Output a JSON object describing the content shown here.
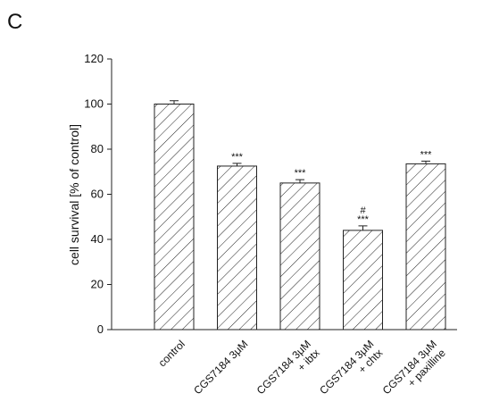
{
  "panel_label": "C",
  "chart_data": {
    "type": "bar",
    "ylabel": "cell survival [% of control]",
    "categories": [
      [
        "control"
      ],
      [
        "CGS7184 3μM"
      ],
      [
        "CGS7184 3μM",
        "+ ibtx"
      ],
      [
        "CGS7184 3μM",
        "+ chtx"
      ],
      [
        "CGS7184 3μM",
        "+ paxilline"
      ]
    ],
    "values": [
      100,
      72.5,
      65,
      44,
      73.5
    ],
    "errors": [
      1.5,
      1.2,
      1.5,
      2,
      1.2
    ],
    "annotations": [
      [],
      [
        "***"
      ],
      [
        "***"
      ],
      [
        "#",
        "***"
      ],
      [
        "***"
      ]
    ],
    "color": "#222222",
    "ylim": [
      0,
      120
    ],
    "yticks": [
      0,
      20,
      40,
      60,
      80,
      100,
      120
    ]
  }
}
